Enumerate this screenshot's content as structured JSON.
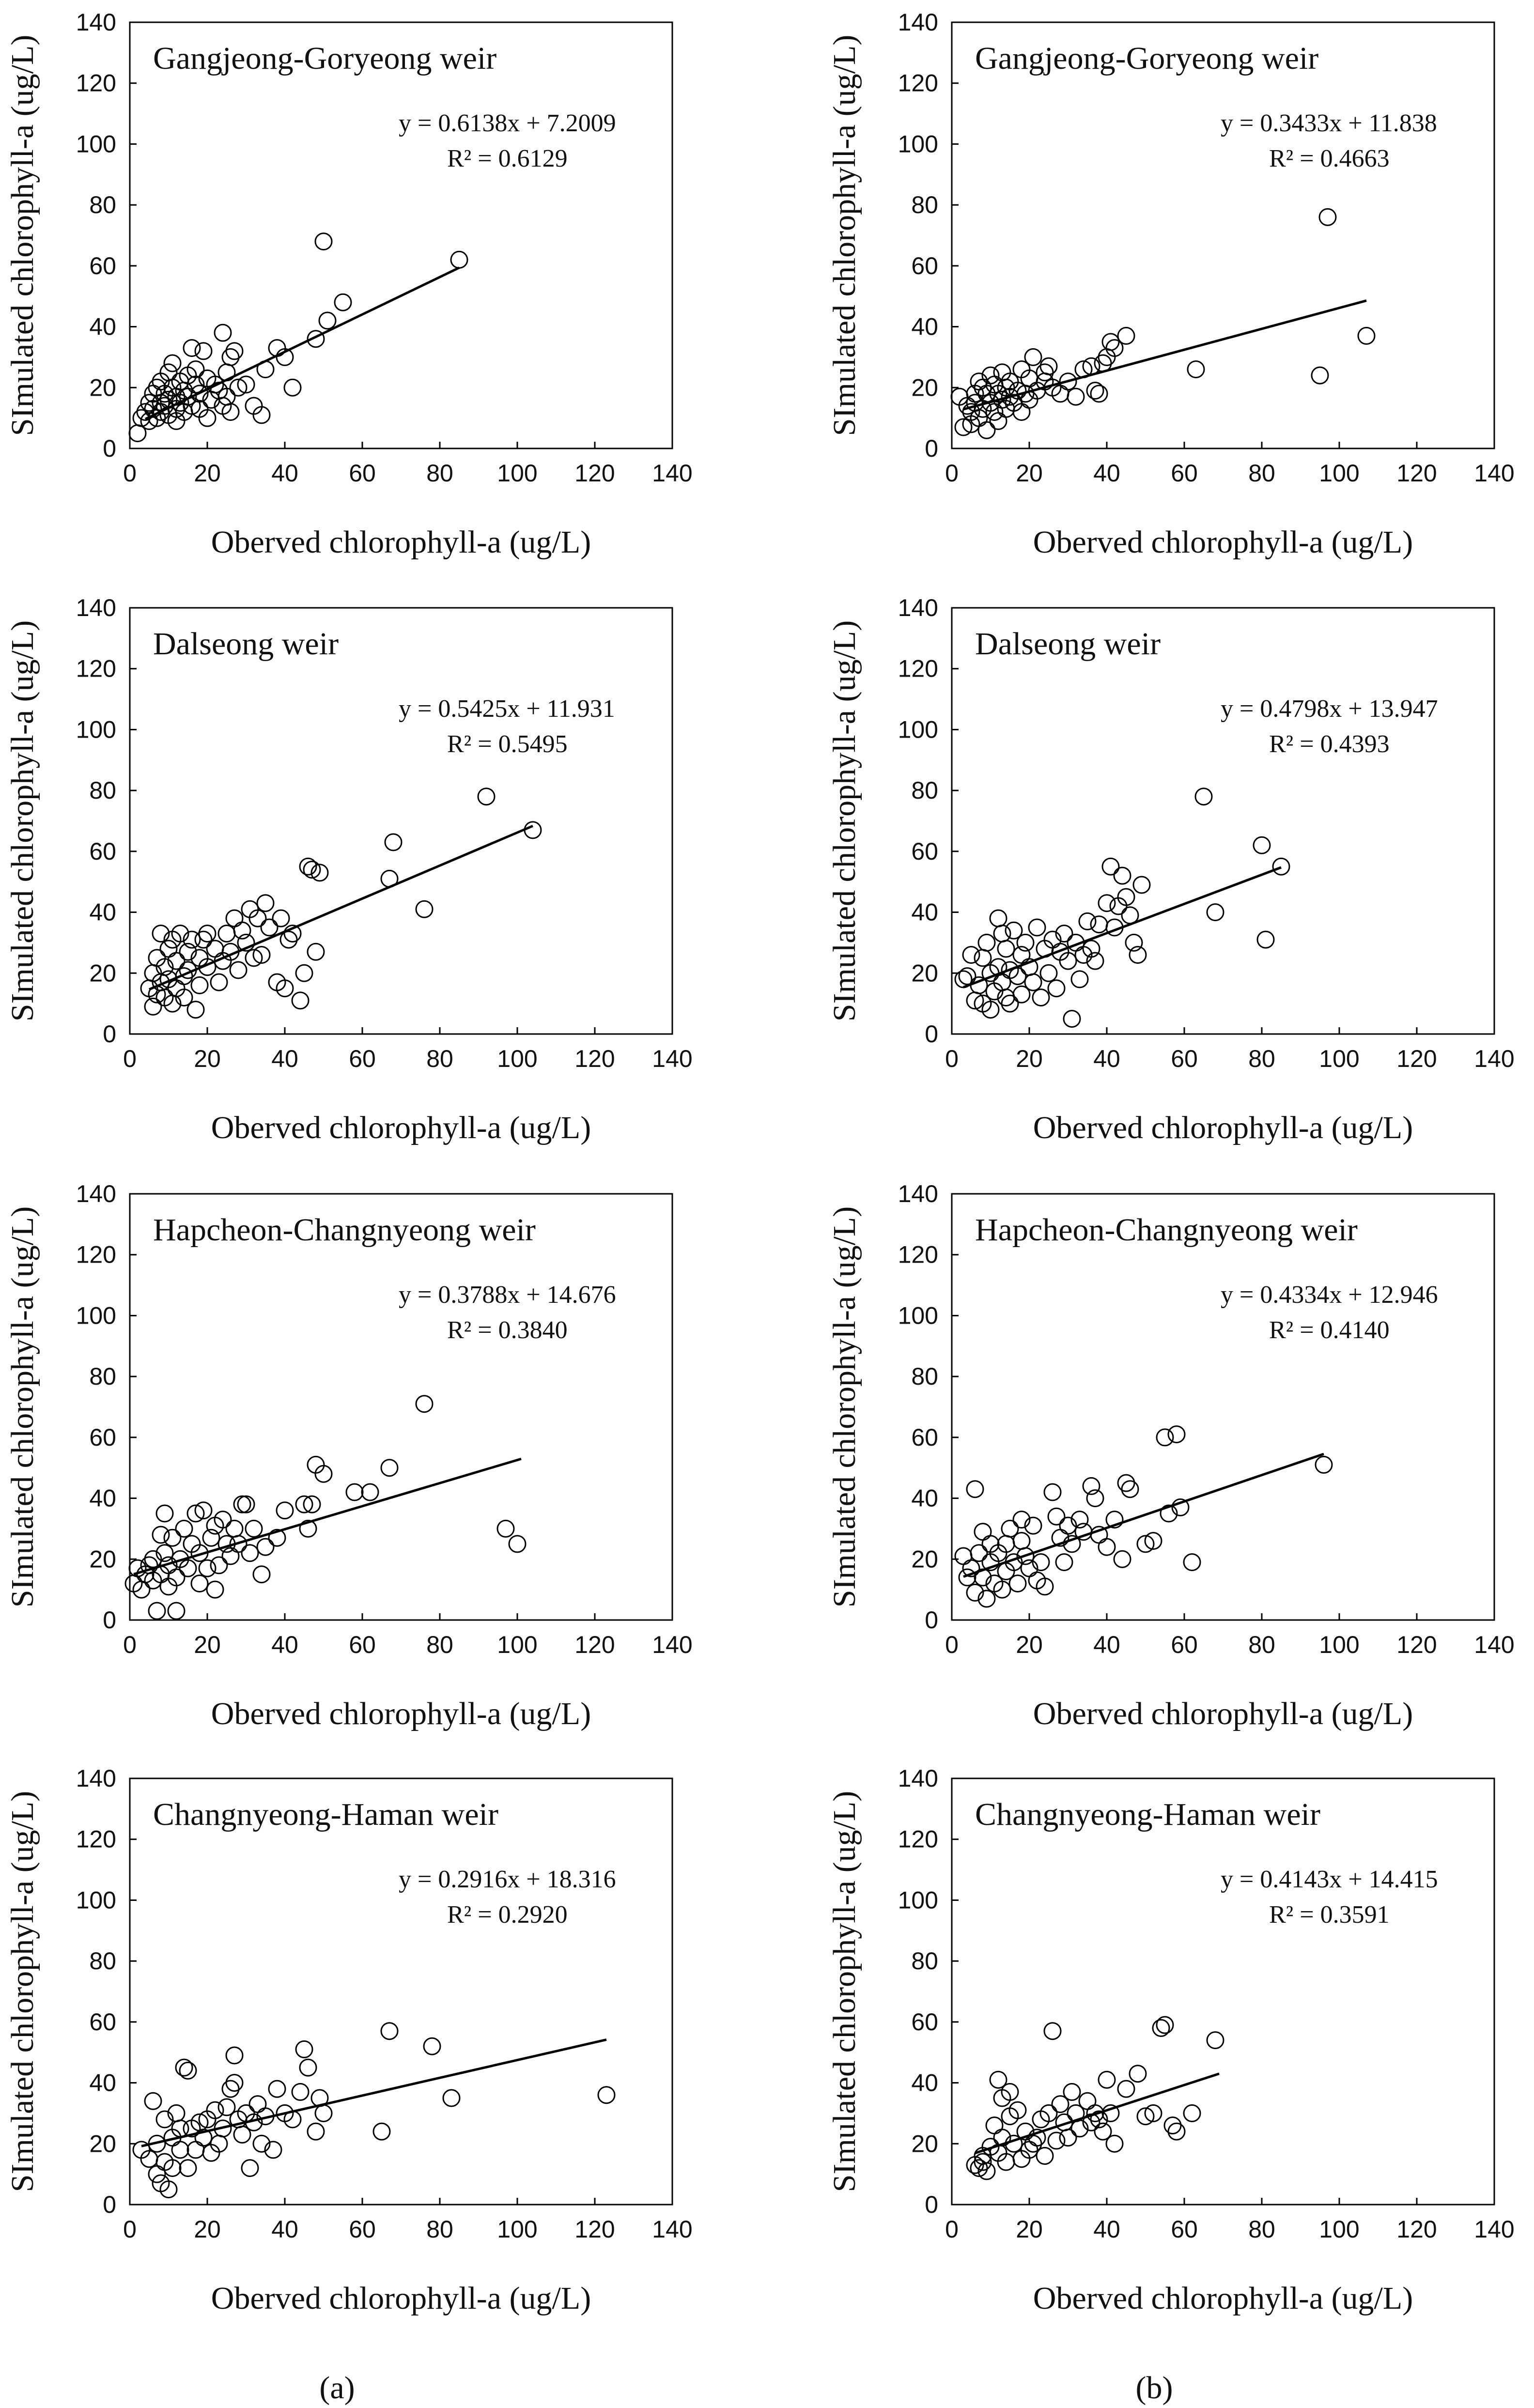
{
  "figure": {
    "label_a": "(a)",
    "label_b": "(b)"
  },
  "chart_data": [
    {
      "type": "scatter",
      "column": "a",
      "title": "Gangjeong-Goryeong weir",
      "equation": "y = 0.6138x + 7.2009",
      "r2": "R² = 0.6129",
      "slope": 0.6138,
      "intercept": 7.2009,
      "fit_x": [
        4,
        85
      ],
      "xlabel": "Oberved chlorophyll-a (ug/L)",
      "ylabel": "SImulated chlorophyll-a (ug/L)",
      "xlim": [
        0,
        140
      ],
      "ylim": [
        0,
        140
      ],
      "ticks": [
        "0",
        "20",
        "40",
        "60",
        "80",
        "100",
        "120",
        "140"
      ],
      "x": [
        2,
        3,
        4,
        5,
        5,
        6,
        6,
        7,
        7,
        8,
        8,
        8,
        9,
        9,
        10,
        10,
        10,
        11,
        11,
        12,
        12,
        12,
        13,
        13,
        14,
        14,
        15,
        15,
        16,
        16,
        17,
        17,
        18,
        18,
        19,
        20,
        20,
        21,
        22,
        23,
        24,
        24,
        25,
        25,
        26,
        26,
        27,
        28,
        30,
        32,
        34,
        35,
        38,
        40,
        42,
        48,
        50,
        51,
        55,
        85
      ],
      "y": [
        5,
        10,
        12,
        15,
        9,
        18,
        13,
        10,
        20,
        15,
        12,
        22,
        18,
        14,
        25,
        16,
        11,
        20,
        28,
        13,
        17,
        9,
        22,
        15,
        19,
        12,
        24,
        17,
        33,
        14,
        21,
        26,
        13,
        18,
        32,
        10,
        23,
        16,
        21,
        19,
        38,
        14,
        25,
        17,
        30,
        12,
        32,
        20,
        21,
        14,
        11,
        26,
        33,
        30,
        20,
        36,
        68,
        42,
        48,
        62
      ]
    },
    {
      "type": "scatter",
      "column": "b",
      "title": "Gangjeong-Goryeong weir",
      "equation": "y = 0.3433x + 11.838",
      "r2": "R² = 0.4663",
      "slope": 0.3433,
      "intercept": 11.838,
      "fit_x": [
        3,
        107
      ],
      "xlabel": "Oberved chlorophyll-a (ug/L)",
      "ylabel": "SImulated chlorophyll-a (ug/L)",
      "xlim": [
        0,
        140
      ],
      "ylim": [
        0,
        140
      ],
      "ticks": [
        "0",
        "20",
        "40",
        "60",
        "80",
        "100",
        "120",
        "140"
      ],
      "x": [
        2,
        3,
        4,
        5,
        5,
        6,
        6,
        7,
        7,
        8,
        8,
        9,
        9,
        10,
        10,
        11,
        11,
        12,
        12,
        13,
        13,
        14,
        14,
        15,
        15,
        16,
        17,
        18,
        18,
        19,
        20,
        20,
        21,
        22,
        24,
        24,
        25,
        26,
        28,
        30,
        32,
        34,
        36,
        37,
        38,
        39,
        40,
        41,
        42,
        45,
        63,
        95,
        97,
        107
      ],
      "y": [
        17,
        7,
        14,
        12,
        8,
        18,
        15,
        10,
        22,
        13,
        20,
        18,
        6,
        24,
        15,
        12,
        21,
        18,
        9,
        25,
        16,
        20,
        13,
        22,
        17,
        15,
        19,
        12,
        26,
        18,
        23,
        16,
        30,
        19,
        22,
        25,
        27,
        20,
        18,
        22,
        17,
        26,
        27,
        19,
        18,
        28,
        30,
        35,
        33,
        37,
        26,
        24,
        76,
        37
      ]
    },
    {
      "type": "scatter",
      "column": "a",
      "title": "Dalseong weir",
      "equation": "y = 0.5425x + 11.931",
      "r2": "R² = 0.5495",
      "slope": 0.5425,
      "intercept": 11.931,
      "fit_x": [
        5,
        104
      ],
      "xlabel": "Oberved chlorophyll-a (ug/L)",
      "ylabel": "SImulated chlorophyll-a (ug/L)",
      "xlim": [
        0,
        140
      ],
      "ylim": [
        0,
        140
      ],
      "ticks": [
        "0",
        "20",
        "40",
        "60",
        "80",
        "100",
        "120",
        "140"
      ],
      "x": [
        5,
        6,
        6,
        7,
        7,
        8,
        8,
        9,
        9,
        10,
        10,
        11,
        11,
        12,
        12,
        13,
        14,
        14,
        15,
        15,
        16,
        17,
        18,
        18,
        19,
        20,
        20,
        22,
        23,
        24,
        25,
        26,
        27,
        28,
        29,
        30,
        31,
        32,
        33,
        34,
        35,
        36,
        38,
        39,
        40,
        41,
        42,
        44,
        45,
        46,
        47,
        48,
        49,
        67,
        68,
        76,
        92,
        104
      ],
      "y": [
        15,
        9,
        20,
        13,
        25,
        33,
        17,
        22,
        12,
        28,
        18,
        10,
        31,
        15,
        24,
        33,
        19,
        12,
        27,
        21,
        31,
        8,
        16,
        25,
        31,
        33,
        22,
        28,
        17,
        24,
        33,
        27,
        38,
        21,
        34,
        30,
        41,
        25,
        38,
        26,
        43,
        35,
        17,
        38,
        15,
        31,
        33,
        11,
        20,
        55,
        54,
        27,
        53,
        51,
        63,
        41,
        78,
        67
      ]
    },
    {
      "type": "scatter",
      "column": "b",
      "title": "Dalseong weir",
      "equation": "y = 0.4798x + 13.947",
      "r2": "R² = 0.4393",
      "slope": 0.4798,
      "intercept": 13.947,
      "fit_x": [
        3,
        85
      ],
      "xlabel": "Oberved chlorophyll-a (ug/L)",
      "ylabel": "SImulated chlorophyll-a (ug/L)",
      "xlim": [
        0,
        140
      ],
      "ylim": [
        0,
        140
      ],
      "ticks": [
        "0",
        "20",
        "40",
        "60",
        "80",
        "100",
        "120",
        "140"
      ],
      "x": [
        3,
        4,
        5,
        6,
        7,
        8,
        8,
        9,
        10,
        10,
        11,
        12,
        12,
        13,
        13,
        14,
        14,
        15,
        15,
        16,
        17,
        18,
        18,
        19,
        20,
        21,
        22,
        23,
        24,
        25,
        26,
        27,
        28,
        29,
        30,
        31,
        32,
        33,
        34,
        35,
        36,
        37,
        38,
        40,
        41,
        42,
        43,
        44,
        45,
        46,
        47,
        48,
        49,
        65,
        68,
        80,
        81,
        85
      ],
      "y": [
        18,
        19,
        26,
        11,
        16,
        25,
        10,
        30,
        20,
        8,
        14,
        38,
        22,
        17,
        33,
        12,
        28,
        21,
        10,
        34,
        19,
        26,
        13,
        30,
        22,
        17,
        35,
        12,
        28,
        20,
        31,
        15,
        27,
        33,
        24,
        5,
        30,
        18,
        26,
        37,
        28,
        24,
        36,
        43,
        55,
        35,
        42,
        52,
        45,
        39,
        30,
        26,
        49,
        78,
        40,
        62,
        31,
        55
      ]
    },
    {
      "type": "scatter",
      "column": "a",
      "title": "Hapcheon-Changnyeong weir",
      "equation": "y = 0.3788x + 14.676",
      "r2": "R² = 0.3840",
      "slope": 0.3788,
      "intercept": 14.676,
      "fit_x": [
        1,
        101
      ],
      "xlabel": "Oberved chlorophyll-a (ug/L)",
      "ylabel": "SImulated chlorophyll-a (ug/L)",
      "xlim": [
        0,
        140
      ],
      "ylim": [
        0,
        140
      ],
      "ticks": [
        "0",
        "20",
        "40",
        "60",
        "80",
        "100",
        "120",
        "140"
      ],
      "x": [
        1,
        2,
        3,
        4,
        5,
        6,
        6,
        7,
        8,
        8,
        9,
        9,
        10,
        10,
        11,
        12,
        12,
        13,
        14,
        15,
        16,
        17,
        18,
        18,
        19,
        20,
        21,
        22,
        22,
        23,
        24,
        25,
        26,
        27,
        28,
        29,
        30,
        31,
        32,
        34,
        35,
        38,
        40,
        45,
        46,
        47,
        48,
        50,
        58,
        62,
        67,
        76,
        97,
        100
      ],
      "y": [
        12,
        17,
        10,
        15,
        18,
        20,
        13,
        3,
        28,
        15,
        35,
        22,
        18,
        11,
        27,
        3,
        14,
        20,
        30,
        17,
        25,
        35,
        22,
        12,
        36,
        17,
        27,
        10,
        31,
        18,
        33,
        25,
        21,
        30,
        25,
        38,
        38,
        22,
        30,
        15,
        24,
        27,
        36,
        38,
        30,
        38,
        51,
        48,
        42,
        42,
        50,
        71,
        30,
        25
      ]
    },
    {
      "type": "scatter",
      "column": "b",
      "title": "Hapcheon-Changnyeong weir",
      "equation": "y = 0.4334x + 12.946",
      "r2": "R² = 0.4140",
      "slope": 0.4334,
      "intercept": 12.946,
      "fit_x": [
        3,
        96
      ],
      "xlabel": "Oberved chlorophyll-a (ug/L)",
      "ylabel": "SImulated chlorophyll-a (ug/L)",
      "xlim": [
        0,
        140
      ],
      "ylim": [
        0,
        140
      ],
      "ticks": [
        "0",
        "20",
        "40",
        "60",
        "80",
        "100",
        "120",
        "140"
      ],
      "x": [
        3,
        4,
        5,
        6,
        6,
        7,
        8,
        8,
        9,
        10,
        10,
        11,
        12,
        13,
        14,
        14,
        15,
        16,
        17,
        18,
        18,
        19,
        20,
        21,
        22,
        23,
        24,
        26,
        27,
        28,
        29,
        30,
        31,
        33,
        34,
        36,
        37,
        38,
        40,
        42,
        44,
        45,
        46,
        50,
        52,
        55,
        56,
        58,
        59,
        62,
        96
      ],
      "y": [
        21,
        14,
        17,
        9,
        43,
        22,
        14,
        29,
        7,
        19,
        25,
        12,
        22,
        10,
        16,
        25,
        30,
        19,
        12,
        26,
        33,
        21,
        17,
        31,
        13,
        19,
        11,
        42,
        34,
        27,
        19,
        31,
        25,
        33,
        29,
        44,
        40,
        28,
        24,
        33,
        20,
        45,
        43,
        25,
        26,
        60,
        35,
        61,
        37,
        19,
        51
      ]
    },
    {
      "type": "scatter",
      "column": "a",
      "title": "Changnyeong-Haman weir",
      "equation": "y = 0.2916x + 18.316",
      "r2": "R² = 0.2920",
      "slope": 0.2916,
      "intercept": 18.316,
      "fit_x": [
        3,
        123
      ],
      "xlabel": "Oberved chlorophyll-a (ug/L)",
      "ylabel": "SImulated chlorophyll-a (ug/L)",
      "xlim": [
        0,
        140
      ],
      "ylim": [
        0,
        140
      ],
      "ticks": [
        "0",
        "20",
        "40",
        "60",
        "80",
        "100",
        "120",
        "140"
      ],
      "x": [
        3,
        5,
        6,
        7,
        7,
        8,
        9,
        9,
        10,
        11,
        11,
        12,
        13,
        13,
        14,
        15,
        15,
        16,
        17,
        18,
        19,
        20,
        21,
        22,
        23,
        24,
        25,
        26,
        27,
        27,
        28,
        29,
        30,
        31,
        32,
        33,
        34,
        35,
        37,
        38,
        40,
        42,
        44,
        45,
        46,
        48,
        49,
        50,
        65,
        67,
        78,
        83,
        123
      ],
      "y": [
        18,
        15,
        34,
        10,
        20,
        7,
        28,
        14,
        5,
        22,
        12,
        30,
        18,
        25,
        45,
        12,
        44,
        25,
        18,
        27,
        22,
        28,
        17,
        31,
        20,
        25,
        32,
        38,
        40,
        49,
        28,
        23,
        30,
        12,
        27,
        33,
        20,
        29,
        18,
        38,
        30,
        28,
        37,
        51,
        45,
        24,
        35,
        30,
        24,
        57,
        52,
        35,
        36
      ]
    },
    {
      "type": "scatter",
      "column": "b",
      "title": "Changnyeong-Haman weir",
      "equation": "y = 0.4143x + 14.415",
      "r2": "R² = 0.3591",
      "slope": 0.4143,
      "intercept": 14.415,
      "fit_x": [
        6,
        69
      ],
      "xlabel": "Oberved chlorophyll-a (ug/L)",
      "ylabel": "SImulated chlorophyll-a (ug/L)",
      "xlim": [
        0,
        140
      ],
      "ylim": [
        0,
        140
      ],
      "ticks": [
        "0",
        "20",
        "40",
        "60",
        "80",
        "100",
        "120",
        "140"
      ],
      "x": [
        6,
        7,
        8,
        8,
        9,
        10,
        11,
        12,
        12,
        13,
        13,
        14,
        15,
        15,
        16,
        17,
        18,
        19,
        20,
        21,
        22,
        23,
        24,
        25,
        26,
        27,
        28,
        29,
        30,
        31,
        32,
        33,
        35,
        36,
        37,
        38,
        39,
        40,
        41,
        42,
        45,
        48,
        50,
        52,
        54,
        55,
        57,
        58,
        62,
        68
      ],
      "y": [
        13,
        12,
        14,
        16,
        11,
        19,
        26,
        17,
        41,
        22,
        35,
        14,
        29,
        37,
        20,
        31,
        15,
        24,
        18,
        20,
        22,
        28,
        16,
        30,
        57,
        21,
        33,
        27,
        22,
        37,
        30,
        25,
        34,
        27,
        30,
        28,
        24,
        41,
        30,
        20,
        38,
        43,
        29,
        30,
        58,
        59,
        26,
        24,
        30,
        54
      ]
    }
  ]
}
